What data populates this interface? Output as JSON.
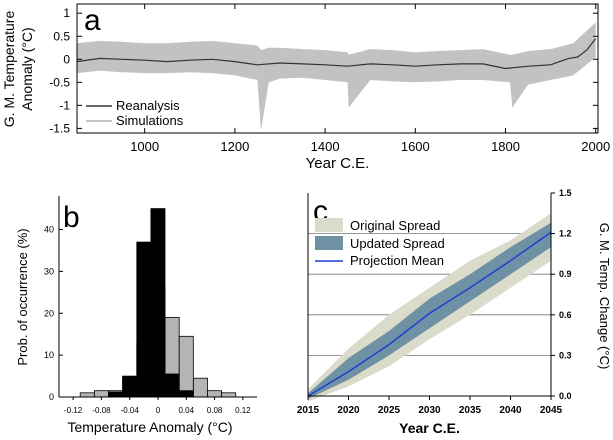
{
  "chart_data": [
    {
      "type": "line",
      "panel_letter": "a",
      "xlabel": "Year C.E.",
      "ylabel_lines": [
        "G. M. Temperature",
        "Anomaly (°C)"
      ],
      "xlim": [
        850,
        2005
      ],
      "ylim": [
        -1.6,
        1.2
      ],
      "xticks": [
        1000,
        1200,
        1400,
        1600,
        1800,
        2000
      ],
      "yticks": [
        1,
        0.5,
        0,
        -0.5,
        -1,
        -1.5
      ],
      "ytick_labels": [
        "1",
        "0.5",
        "0",
        "-0.5",
        "-1",
        "-1.5"
      ],
      "legend": {
        "position": "bottom-left",
        "entries": [
          "Reanalysis",
          "Simulations"
        ]
      },
      "series": [
        {
          "name": "Reanalysis",
          "color": "#333333",
          "x": [
            850,
            900,
            950,
            1000,
            1050,
            1100,
            1150,
            1200,
            1250,
            1300,
            1350,
            1400,
            1450,
            1500,
            1550,
            1600,
            1650,
            1700,
            1750,
            1800,
            1850,
            1900,
            1920,
            1940,
            1960,
            1980,
            2000
          ],
          "y": [
            -0.05,
            0.02,
            0.0,
            -0.02,
            -0.05,
            -0.02,
            0.0,
            -0.05,
            -0.12,
            -0.08,
            -0.1,
            -0.12,
            -0.15,
            -0.1,
            -0.12,
            -0.15,
            -0.12,
            -0.1,
            -0.1,
            -0.2,
            -0.15,
            -0.12,
            -0.05,
            0.02,
            0.05,
            0.2,
            0.45
          ]
        },
        {
          "name": "Simulations",
          "color": "#c2c2c2",
          "x": [
            850,
            900,
            950,
            1000,
            1050,
            1100,
            1150,
            1200,
            1250,
            1258,
            1275,
            1300,
            1350,
            1400,
            1450,
            1452,
            1500,
            1550,
            1600,
            1650,
            1700,
            1750,
            1810,
            1815,
            1850,
            1900,
            1950,
            2000
          ],
          "upper": [
            0.35,
            0.4,
            0.38,
            0.35,
            0.35,
            0.38,
            0.4,
            0.35,
            0.3,
            0.2,
            0.25,
            0.25,
            0.22,
            0.2,
            0.15,
            0.1,
            0.22,
            0.2,
            0.15,
            0.18,
            0.2,
            0.22,
            0.1,
            0.1,
            0.18,
            0.22,
            0.35,
            0.8
          ],
          "lower": [
            -0.3,
            -0.25,
            -0.28,
            -0.3,
            -0.3,
            -0.28,
            -0.3,
            -0.35,
            -0.45,
            -1.55,
            -0.5,
            -0.42,
            -0.4,
            -0.45,
            -0.5,
            -1.05,
            -0.45,
            -0.48,
            -0.5,
            -0.48,
            -0.45,
            -0.45,
            -0.5,
            -1.05,
            -0.55,
            -0.45,
            -0.35,
            0.05
          ]
        }
      ]
    },
    {
      "type": "bar",
      "panel_letter": "b",
      "xlabel": "Temperature Anomaly (°C)",
      "ylabel": "Prob. of occurrence (%)",
      "xlim": [
        -0.14,
        0.14
      ],
      "ylim": [
        0,
        48
      ],
      "xticks": [
        -0.12,
        -0.08,
        -0.04,
        0,
        0.04,
        0.08,
        0.12
      ],
      "xtick_labels": [
        "-0.12",
        "-0.08",
        "-0.04",
        "0",
        "0.04",
        "0.08",
        "0.12"
      ],
      "yticks": [
        0,
        10,
        20,
        30,
        40
      ],
      "bin_width": 0.02,
      "series": [
        {
          "name": "",
          "color": "#b4b4b4",
          "x": [
            -0.1,
            -0.08,
            -0.06,
            -0.04,
            -0.02,
            0.0,
            0.02,
            0.04,
            0.06,
            0.08,
            0.1
          ],
          "values": [
            1,
            1.5,
            1.5,
            4.5,
            13,
            26.5,
            19,
            14.5,
            4.5,
            1.5,
            1
          ]
        },
        {
          "name": "",
          "color": "#000000",
          "x": [
            -0.06,
            -0.04,
            -0.02,
            0.0,
            0.02,
            0.04
          ],
          "values": [
            1.2,
            5,
            37,
            45,
            5.5,
            1.5
          ]
        }
      ]
    },
    {
      "type": "area",
      "panel_letter": "c",
      "xlabel": "Year C.E.",
      "ylabel": "G. M. Temp. Change (°C)",
      "xlim": [
        2015,
        2045
      ],
      "ylim": [
        0,
        1.5
      ],
      "xticks": [
        2015,
        2020,
        2025,
        2030,
        2035,
        2040,
        2045
      ],
      "yticks": [
        0,
        0.3,
        0.6,
        0.9,
        1.2,
        1.5
      ],
      "ytick_labels": [
        "0.0",
        "0.3",
        "0.6",
        "0.9",
        "1.2",
        "1.5"
      ],
      "legend": {
        "position": "top-left",
        "entries": [
          "Original Spread",
          "Updated Spread",
          "Projection Mean"
        ]
      },
      "series": [
        {
          "name": "Original Spread",
          "color": "#dbdbcc",
          "x": [
            2015,
            2020,
            2025,
            2030,
            2035,
            2040,
            2045
          ],
          "upper": [
            0.05,
            0.35,
            0.6,
            0.8,
            1.0,
            1.15,
            1.35
          ],
          "lower": [
            -0.04,
            0.07,
            0.22,
            0.42,
            0.6,
            0.8,
            1.0
          ]
        },
        {
          "name": "Updated Spread",
          "color": "#6e92a4",
          "x": [
            2015,
            2020,
            2025,
            2030,
            2035,
            2040,
            2045
          ],
          "upper": [
            0.02,
            0.28,
            0.48,
            0.72,
            0.9,
            1.1,
            1.28
          ],
          "lower": [
            -0.02,
            0.12,
            0.3,
            0.5,
            0.7,
            0.9,
            1.1
          ]
        },
        {
          "name": "Projection Mean",
          "color": "#1f3fd2",
          "x": [
            2015,
            2020,
            2025,
            2030,
            2035,
            2040,
            2045
          ],
          "y": [
            0.0,
            0.18,
            0.38,
            0.61,
            0.8,
            1.0,
            1.21
          ]
        }
      ]
    }
  ]
}
